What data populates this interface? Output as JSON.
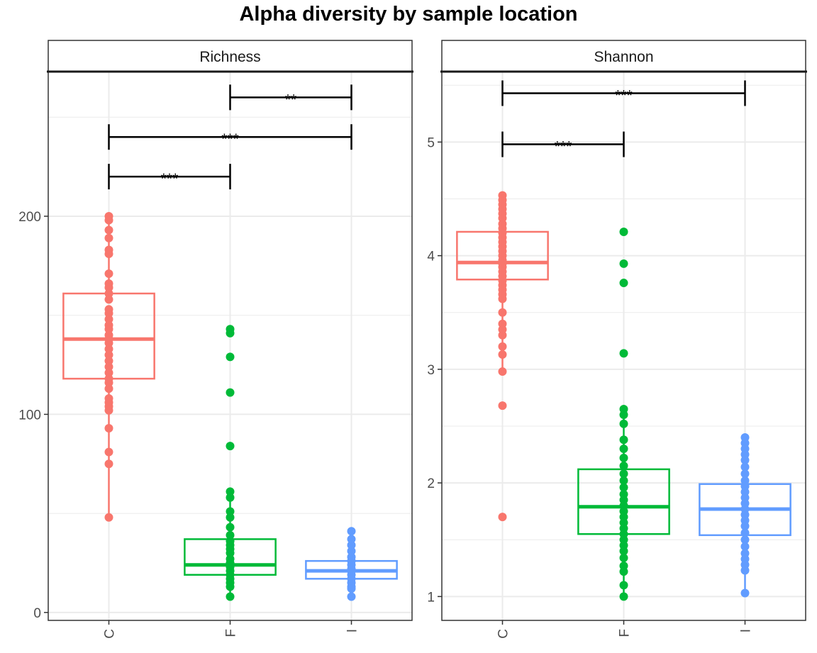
{
  "title": "Alpha diversity by sample location",
  "colors": {
    "C": "#F8766D",
    "F": "#00BA38",
    "I": "#619CFF"
  },
  "chart_data": [
    {
      "type": "box",
      "facet": "Richness",
      "categories": [
        "C",
        "F",
        "I"
      ],
      "ylim": [
        -4,
        273
      ],
      "yticks": [
        0,
        100,
        200
      ],
      "grid": true,
      "boxes": [
        {
          "category": "C",
          "q1": 118,
          "median": 138,
          "q3": 161,
          "whisker_low": 48,
          "whisker_high": 200
        },
        {
          "category": "F",
          "q1": 19,
          "median": 24,
          "q3": 37,
          "whisker_low": 8,
          "whisker_high": 60
        },
        {
          "category": "I",
          "q1": 17,
          "median": 21,
          "q3": 26,
          "whisker_low": 8,
          "whisker_high": 41
        }
      ],
      "points": {
        "C": [
          200,
          198,
          193,
          189,
          183,
          181,
          171,
          166,
          164,
          161,
          158,
          153,
          151,
          148,
          145,
          143,
          140,
          138,
          136,
          133,
          130,
          127,
          124,
          121,
          118,
          116,
          113,
          108,
          106,
          104,
          102,
          93,
          81,
          75,
          48
        ],
        "F": [
          143,
          141,
          129,
          111,
          84,
          61,
          58,
          51,
          48,
          43,
          39,
          36,
          34,
          32,
          30,
          27,
          25,
          23,
          21,
          19,
          17,
          15,
          13,
          8
        ],
        "I": [
          41,
          37,
          34,
          31,
          28,
          26,
          24,
          22,
          21,
          19,
          17,
          15,
          13,
          12,
          8
        ]
      },
      "comparisons": [
        {
          "from": "C",
          "to": "F",
          "y": 220,
          "label": "***"
        },
        {
          "from": "C",
          "to": "I",
          "y": 240,
          "label": "***"
        },
        {
          "from": "F",
          "to": "I",
          "y": 260,
          "label": "**"
        }
      ]
    },
    {
      "type": "box",
      "facet": "Shannon",
      "categories": [
        "C",
        "F",
        "I"
      ],
      "ylim": [
        0.79,
        5.62
      ],
      "yticks": [
        1,
        2,
        3,
        4,
        5
      ],
      "grid": true,
      "boxes": [
        {
          "category": "C",
          "q1": 3.79,
          "median": 3.94,
          "q3": 4.21,
          "whisker_low": 2.98,
          "whisker_high": 4.53
        },
        {
          "category": "F",
          "q1": 1.55,
          "median": 1.79,
          "q3": 2.12,
          "whisker_low": 1.0,
          "whisker_high": 2.65
        },
        {
          "category": "I",
          "q1": 1.54,
          "median": 1.77,
          "q3": 1.99,
          "whisker_low": 1.03,
          "whisker_high": 2.4
        }
      ],
      "points": {
        "C": [
          4.53,
          4.49,
          4.45,
          4.41,
          4.37,
          4.33,
          4.28,
          4.24,
          4.2,
          4.16,
          4.12,
          4.08,
          4.04,
          4.0,
          3.96,
          3.93,
          3.9,
          3.86,
          3.82,
          3.78,
          3.74,
          3.7,
          3.66,
          3.62,
          3.5,
          3.4,
          3.35,
          3.3,
          3.2,
          3.13,
          2.98,
          2.68,
          1.7
        ],
        "F": [
          4.21,
          3.93,
          3.76,
          3.14,
          2.65,
          2.6,
          2.52,
          2.38,
          2.3,
          2.22,
          2.15,
          2.08,
          2.02,
          1.96,
          1.9,
          1.85,
          1.8,
          1.75,
          1.7,
          1.65,
          1.6,
          1.55,
          1.5,
          1.45,
          1.4,
          1.34,
          1.27,
          1.22,
          1.1,
          1.0
        ],
        "I": [
          2.4,
          2.35,
          2.3,
          2.25,
          2.2,
          2.14,
          2.08,
          2.02,
          1.97,
          1.92,
          1.87,
          1.82,
          1.77,
          1.72,
          1.67,
          1.62,
          1.56,
          1.5,
          1.44,
          1.38,
          1.33,
          1.28,
          1.23,
          1.03
        ]
      },
      "comparisons": [
        {
          "from": "C",
          "to": "F",
          "y": 4.98,
          "label": "***"
        },
        {
          "from": "C",
          "to": "I",
          "y": 5.43,
          "label": "***"
        }
      ]
    }
  ]
}
